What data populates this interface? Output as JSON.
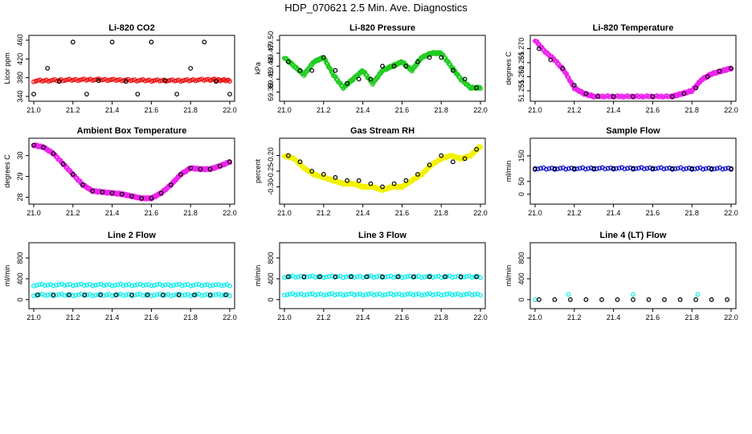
{
  "title": "HDP_070621  2.5 Min. Ave. Diagnostics",
  "colors": {
    "axis": "#000000",
    "overlay": "#000000",
    "red": "#ee1111",
    "green": "#22cc22",
    "magenta": "#ee22ee",
    "yellow": "#f2f200",
    "blue": "#1111cc",
    "cyan": "#11eeee"
  },
  "chart_data": [
    {
      "type": "scatter",
      "title": "Li-820 CO2",
      "ylabel": "Licor ppm",
      "xlim": [
        21.0,
        22.0
      ],
      "ylim": [
        340,
        460
      ],
      "xticks": [
        "21.0",
        "21.2",
        "21.4",
        "21.6",
        "21.8",
        "22.0"
      ],
      "yticks": [
        "340",
        "380",
        "420",
        "460"
      ],
      "color": "red",
      "series": [
        {
          "name": "fast",
          "color": "red",
          "x": [
            21.0,
            21.15,
            21.3,
            21.45,
            21.6,
            21.75,
            21.9,
            22.0
          ],
          "y": [
            373,
            375,
            376,
            375,
            374,
            374,
            376,
            374
          ]
        },
        {
          "name": "2.5 min ave",
          "color": "overlay",
          "scatter": true,
          "x": [
            21.0,
            21.07,
            21.13,
            21.2,
            21.27,
            21.33,
            21.4,
            21.47,
            21.53,
            21.6,
            21.67,
            21.73,
            21.8,
            21.87,
            21.93,
            22.0
          ],
          "y": [
            345,
            400,
            372,
            456,
            345,
            374,
            456,
            372,
            345,
            456,
            374,
            345,
            400,
            456,
            372,
            345
          ]
        }
      ]
    },
    {
      "type": "scatter",
      "title": "Li-820 Pressure",
      "ylabel": "kPa",
      "xlim": [
        21.0,
        22.0
      ],
      "ylim": [
        69.37,
        69.5
      ],
      "xticks": [
        "21.0",
        "21.2",
        "21.4",
        "21.6",
        "21.8",
        "22.0"
      ],
      "yticks": [
        "69.38",
        "69.41",
        "69.44",
        "69.47",
        "69.50"
      ],
      "color": "green",
      "series": [
        {
          "name": "fast",
          "color": "green",
          "x": [
            21.0,
            21.05,
            21.1,
            21.15,
            21.2,
            21.25,
            21.3,
            21.35,
            21.4,
            21.45,
            21.5,
            21.55,
            21.6,
            21.65,
            21.7,
            21.75,
            21.8,
            21.85,
            21.9,
            21.95,
            22.0
          ],
          "y": [
            69.46,
            69.44,
            69.42,
            69.45,
            69.46,
            69.42,
            69.39,
            69.41,
            69.43,
            69.4,
            69.43,
            69.44,
            69.45,
            69.43,
            69.46,
            69.47,
            69.47,
            69.44,
            69.41,
            69.39,
            69.39
          ]
        },
        {
          "name": "2.5 min ave",
          "color": "overlay",
          "scatter": true,
          "x": [
            21.02,
            21.08,
            21.14,
            21.2,
            21.26,
            21.32,
            21.38,
            21.44,
            21.5,
            21.56,
            21.62,
            21.68,
            21.74,
            21.8,
            21.86,
            21.92,
            21.98
          ],
          "y": [
            69.45,
            69.43,
            69.43,
            69.46,
            69.43,
            69.4,
            69.41,
            69.41,
            69.44,
            69.44,
            69.44,
            69.45,
            69.46,
            69.46,
            69.43,
            69.41,
            69.39
          ]
        }
      ]
    },
    {
      "type": "scatter",
      "title": "Li-820 Temperature",
      "ylabel": "degrees C",
      "xlim": [
        21.0,
        22.0
      ],
      "ylim": [
        51.253,
        51.273
      ],
      "xticks": [
        "21.0",
        "21.2",
        "21.4",
        "21.6",
        "21.8",
        "22.0"
      ],
      "yticks": [
        "51.255",
        "51.260",
        "51.265",
        "51.270"
      ],
      "color": "magenta",
      "series": [
        {
          "name": "fast",
          "color": "magenta",
          "x": [
            21.0,
            21.05,
            21.1,
            21.15,
            21.2,
            21.25,
            21.3,
            21.4,
            21.5,
            21.6,
            21.7,
            21.75,
            21.8,
            21.85,
            21.9,
            21.95,
            22.0
          ],
          "y": [
            51.273,
            51.269,
            51.266,
            51.262,
            51.256,
            51.254,
            51.253,
            51.253,
            51.253,
            51.253,
            51.253,
            51.254,
            51.255,
            51.259,
            51.261,
            51.262,
            51.263
          ]
        },
        {
          "name": "2.5 min ave",
          "color": "overlay",
          "scatter": true,
          "x": [
            21.02,
            21.08,
            21.14,
            21.2,
            21.26,
            21.32,
            21.4,
            21.5,
            21.6,
            21.7,
            21.76,
            21.82,
            21.88,
            21.94,
            22.0
          ],
          "y": [
            51.27,
            51.266,
            51.263,
            51.257,
            51.254,
            51.253,
            51.253,
            51.253,
            51.253,
            51.253,
            51.254,
            51.256,
            51.26,
            51.262,
            51.263
          ]
        }
      ]
    },
    {
      "type": "scatter",
      "title": "Ambient Box Temperature",
      "ylabel": "degrees C",
      "xlim": [
        21.0,
        22.0
      ],
      "ylim": [
        27.9,
        30.6
      ],
      "xticks": [
        "21.0",
        "21.2",
        "21.4",
        "21.6",
        "21.8",
        "22.0"
      ],
      "yticks": [
        "28",
        "29",
        "30"
      ],
      "color": "magenta",
      "series": [
        {
          "name": "fast",
          "color": "magenta",
          "x": [
            21.0,
            21.05,
            21.1,
            21.15,
            21.2,
            21.25,
            21.3,
            21.35,
            21.4,
            21.45,
            21.5,
            21.55,
            21.6,
            21.65,
            21.7,
            21.75,
            21.8,
            21.85,
            21.9,
            21.95,
            22.0
          ],
          "y": [
            30.5,
            30.4,
            30.1,
            29.6,
            29.1,
            28.6,
            28.3,
            28.25,
            28.2,
            28.15,
            28.05,
            27.95,
            27.95,
            28.2,
            28.6,
            29.1,
            29.4,
            29.35,
            29.35,
            29.5,
            29.7
          ]
        },
        {
          "name": "2.5 min ave",
          "color": "overlay",
          "scatter": true,
          "x": [
            21.0,
            21.05,
            21.1,
            21.15,
            21.2,
            21.25,
            21.3,
            21.35,
            21.4,
            21.45,
            21.5,
            21.55,
            21.6,
            21.65,
            21.7,
            21.75,
            21.8,
            21.85,
            21.9,
            21.95,
            22.0
          ],
          "y": [
            30.5,
            30.4,
            30.1,
            29.6,
            29.1,
            28.6,
            28.3,
            28.25,
            28.2,
            28.15,
            28.05,
            27.95,
            27.95,
            28.2,
            28.6,
            29.1,
            29.4,
            29.35,
            29.35,
            29.5,
            29.7
          ]
        }
      ]
    },
    {
      "type": "scatter",
      "title": "Gas Stream RH",
      "ylabel": "percent",
      "xlim": [
        21.0,
        22.0
      ],
      "ylim": [
        -0.34,
        -0.16
      ],
      "xticks": [
        "21.0",
        "21.2",
        "21.4",
        "21.6",
        "21.8",
        "22.0"
      ],
      "yticks": [
        "-0.30",
        "-0.25",
        "-0.20"
      ],
      "color": "yellow",
      "series": [
        {
          "name": "fast",
          "color": "yellow",
          "x": [
            21.0,
            21.05,
            21.1,
            21.15,
            21.2,
            21.25,
            21.3,
            21.35,
            21.4,
            21.45,
            21.5,
            21.55,
            21.6,
            21.65,
            21.7,
            21.75,
            21.8,
            21.85,
            21.9,
            21.95,
            22.0
          ],
          "y": [
            -0.2,
            -0.21,
            -0.24,
            -0.26,
            -0.27,
            -0.28,
            -0.29,
            -0.29,
            -0.3,
            -0.3,
            -0.31,
            -0.3,
            -0.3,
            -0.28,
            -0.26,
            -0.23,
            -0.21,
            -0.2,
            -0.21,
            -0.2,
            -0.17
          ]
        },
        {
          "name": "2.5 min ave",
          "color": "overlay",
          "scatter": true,
          "x": [
            21.02,
            21.08,
            21.14,
            21.2,
            21.26,
            21.32,
            21.38,
            21.44,
            21.5,
            21.56,
            21.62,
            21.68,
            21.74,
            21.8,
            21.86,
            21.92,
            21.98
          ],
          "y": [
            -0.2,
            -0.22,
            -0.25,
            -0.26,
            -0.27,
            -0.28,
            -0.28,
            -0.29,
            -0.3,
            -0.29,
            -0.28,
            -0.26,
            -0.23,
            -0.2,
            -0.22,
            -0.21,
            -0.18
          ]
        }
      ]
    },
    {
      "type": "scatter",
      "title": "Sample Flow",
      "ylabel": "ml/min",
      "xlim": [
        21.0,
        22.0
      ],
      "ylim": [
        -20,
        200
      ],
      "xticks": [
        "21.0",
        "21.2",
        "21.4",
        "21.6",
        "21.8",
        "22.0"
      ],
      "yticks": [
        "0",
        "50",
        "150"
      ],
      "color": "blue",
      "series": [
        {
          "name": "fast",
          "color": "blue",
          "x": [
            21.0,
            21.2,
            21.4,
            21.6,
            21.8,
            22.0
          ],
          "y": [
            100,
            100,
            101,
            101,
            100,
            100
          ]
        },
        {
          "name": "2.5 min ave",
          "color": "overlay",
          "scatter": true,
          "x": [
            21.0,
            21.1,
            21.2,
            21.3,
            21.4,
            21.5,
            21.6,
            21.7,
            21.8,
            21.9,
            22.0
          ],
          "y": [
            100,
            100,
            100,
            101,
            101,
            101,
            101,
            100,
            100,
            100,
            100
          ]
        }
      ]
    },
    {
      "type": "scatter",
      "title": "Line 2 Flow",
      "ylabel": "ml/min",
      "xlim": [
        21.0,
        22.0
      ],
      "ylim": [
        -80,
        1000
      ],
      "xticks": [
        "21.0",
        "21.2",
        "21.4",
        "21.6",
        "21.8",
        "22.0"
      ],
      "yticks": [
        "0",
        "400",
        "800"
      ],
      "color": "cyan",
      "series": [
        {
          "name": "fast high",
          "color": "cyan",
          "x": [
            21.0,
            21.2,
            21.4,
            21.6,
            21.8,
            22.0
          ],
          "y": [
            280,
            285,
            280,
            282,
            280,
            278
          ]
        },
        {
          "name": "fast low",
          "color": "cyan",
          "x": [
            21.0,
            21.2,
            21.4,
            21.6,
            21.8,
            22.0
          ],
          "y": [
            90,
            90,
            90,
            90,
            90,
            90
          ]
        },
        {
          "name": "2.5 min ave",
          "color": "overlay",
          "scatter": true,
          "x": [
            21.02,
            21.1,
            21.18,
            21.26,
            21.34,
            21.42,
            21.5,
            21.58,
            21.66,
            21.74,
            21.82,
            21.9,
            21.98
          ],
          "y": [
            90,
            90,
            90,
            90,
            90,
            90,
            90,
            90,
            90,
            90,
            90,
            90,
            90
          ]
        }
      ]
    },
    {
      "type": "scatter",
      "title": "Line 3 Flow",
      "ylabel": "ml/min",
      "xlim": [
        21.0,
        22.0
      ],
      "ylim": [
        -80,
        1000
      ],
      "xticks": [
        "21.0",
        "21.2",
        "21.4",
        "21.6",
        "21.8",
        "22.0"
      ],
      "yticks": [
        "0",
        "400",
        "800"
      ],
      "color": "cyan",
      "series": [
        {
          "name": "fast high",
          "color": "cyan",
          "x": [
            21.0,
            21.2,
            21.4,
            21.6,
            21.8,
            22.0
          ],
          "y": [
            440,
            440,
            440,
            440,
            440,
            440
          ]
        },
        {
          "name": "fast low",
          "color": "cyan",
          "x": [
            21.0,
            21.2,
            21.4,
            21.6,
            21.8,
            22.0
          ],
          "y": [
            100,
            100,
            100,
            100,
            100,
            100
          ]
        },
        {
          "name": "2.5 min ave",
          "color": "overlay",
          "scatter": true,
          "x": [
            21.02,
            21.1,
            21.18,
            21.26,
            21.34,
            21.42,
            21.5,
            21.58,
            21.66,
            21.74,
            21.82,
            21.9,
            21.98
          ],
          "y": [
            440,
            440,
            440,
            440,
            440,
            440,
            440,
            440,
            440,
            440,
            440,
            440,
            440
          ]
        }
      ]
    },
    {
      "type": "scatter",
      "title": "Line 4 (LT) Flow",
      "ylabel": "ml/min",
      "xlim": [
        21.0,
        22.0
      ],
      "ylim": [
        -80,
        1000
      ],
      "xticks": [
        "21.0",
        "21.2",
        "21.4",
        "21.6",
        "21.8",
        "22.0"
      ],
      "yticks": [
        "0",
        "400",
        "800"
      ],
      "color": "cyan",
      "series": [
        {
          "name": "fast",
          "color": "cyan",
          "scatter": true,
          "x": [
            21.0,
            21.17,
            21.5,
            21.83
          ],
          "y": [
            0,
            100,
            100,
            100
          ]
        },
        {
          "name": "2.5 min ave",
          "color": "overlay",
          "scatter": true,
          "x": [
            21.02,
            21.1,
            21.18,
            21.26,
            21.34,
            21.42,
            21.5,
            21.58,
            21.66,
            21.74,
            21.82,
            21.9,
            21.98
          ],
          "y": [
            0,
            0,
            0,
            0,
            0,
            0,
            0,
            0,
            0,
            0,
            0,
            0,
            0
          ]
        }
      ]
    }
  ]
}
